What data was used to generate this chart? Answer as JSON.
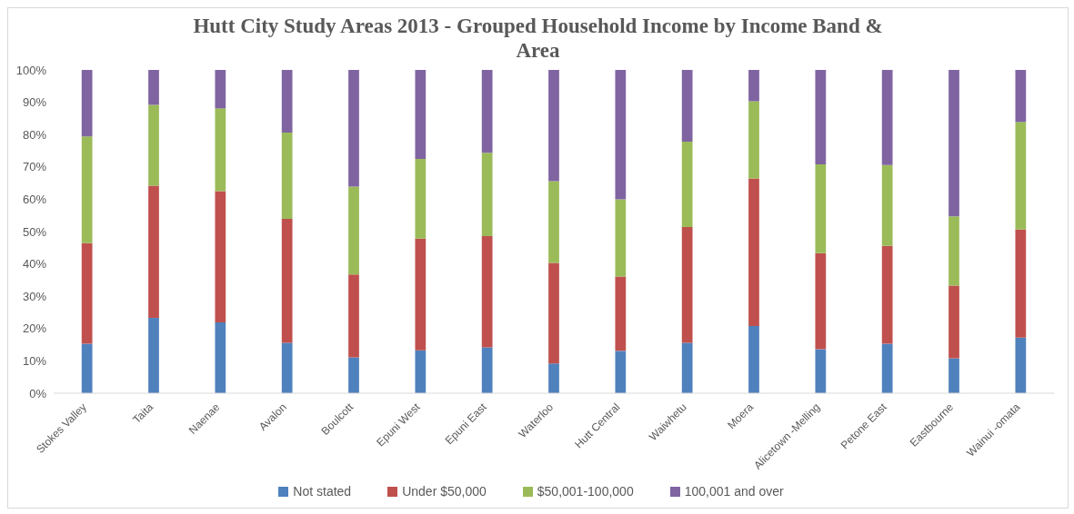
{
  "chart_data": {
    "type": "bar",
    "stacked": true,
    "title": "Hutt City Study Areas 2013 - Grouped Household Income by Income Band & Area",
    "categories": [
      "Stokes Valley",
      "Taita",
      "Naenae",
      "Avalon",
      "Boulcott",
      "Epuni West",
      "Epuni East",
      "Waterloo",
      "Hutt Central",
      "Waiwhetu",
      "Moera",
      "Alicetown -Melling",
      "Petone East",
      "Eastbourne",
      "Wainui -omata"
    ],
    "series": [
      {
        "name": "Not stated",
        "color": "#4f81bd",
        "values": [
          15.3,
          23.3,
          21.9,
          15.6,
          11.1,
          13.3,
          14.2,
          9.2,
          13.1,
          15.6,
          20.8,
          13.6,
          15.3,
          10.8,
          17.2
        ]
      },
      {
        "name": "Under $50,000",
        "color": "#c0504d",
        "values": [
          31.1,
          40.9,
          40.6,
          38.3,
          25.6,
          34.5,
          34.4,
          31.1,
          23.0,
          35.8,
          45.6,
          29.7,
          30.3,
          22.5,
          33.4
        ]
      },
      {
        "name": "$50,001-100,000",
        "color": "#9bbb59",
        "values": [
          33.0,
          25.0,
          25.6,
          26.7,
          27.2,
          24.7,
          25.8,
          25.3,
          23.9,
          26.4,
          23.9,
          27.5,
          25.0,
          21.4,
          33.3
        ]
      },
      {
        "name": "100,001 and over",
        "color": "#8064a2",
        "values": [
          20.6,
          10.8,
          11.9,
          19.4,
          36.1,
          27.5,
          25.6,
          34.4,
          40.0,
          22.2,
          9.7,
          29.2,
          29.4,
          45.3,
          16.1
        ]
      }
    ],
    "ylim": [
      0,
      100
    ],
    "yticks": [
      {
        "value": 0,
        "label": "0%"
      },
      {
        "value": 10,
        "label": "10%"
      },
      {
        "value": 20,
        "label": "20%"
      },
      {
        "value": 30,
        "label": "30%"
      },
      {
        "value": 40,
        "label": "40%"
      },
      {
        "value": 50,
        "label": "50%"
      },
      {
        "value": 60,
        "label": "60%"
      },
      {
        "value": 70,
        "label": "70%"
      },
      {
        "value": 80,
        "label": "80%"
      },
      {
        "value": 90,
        "label": "90%"
      },
      {
        "value": 100,
        "label": "100%"
      }
    ],
    "legend": "bottom"
  }
}
